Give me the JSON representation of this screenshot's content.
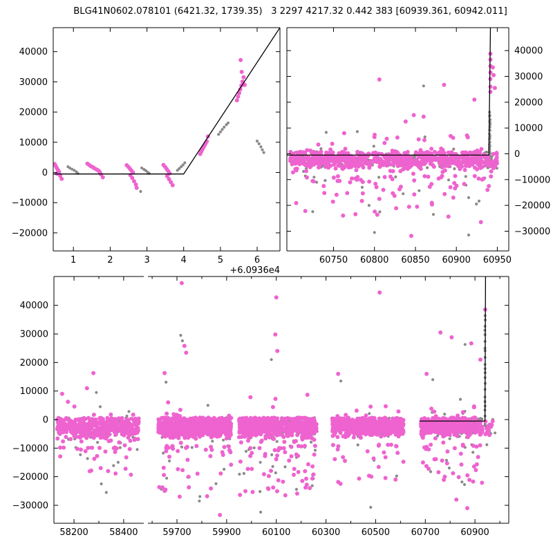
{
  "title": "BLG41N0602.078101 (6421.32, 1739.35)   3 2297 4217.32 0.442 383 [60939.361, 60942.011]",
  "colors": {
    "magenta": "#ee63cf",
    "gray": "#8a8a8a",
    "model_line": "#000000",
    "background": "#ffffff",
    "axis": "#000000"
  },
  "marker": {
    "magenta_radius": 3.0,
    "gray_radius": 2.1
  },
  "chart_data": [
    {
      "id": "event-zoom",
      "type": "scatter",
      "ylim": [
        -25970,
        47940
      ],
      "yticks": [
        -20000,
        -10000,
        0,
        10000,
        20000,
        30000,
        40000
      ],
      "ytick_side": "left",
      "x_offset_label": "+6.0936e4",
      "panels": [
        {
          "xlim": [
            60936.45,
            60942.62
          ],
          "xticks": [
            60937,
            60938,
            60939,
            60940,
            60941,
            60942
          ],
          "xtick_labels": [
            "1",
            "2",
            "3",
            "4",
            "5",
            "6"
          ],
          "xminor": []
        }
      ],
      "model_line": [
        [
          60936.45,
          -500
        ],
        [
          60940.0,
          -500
        ],
        [
          60942.62,
          47940
        ]
      ],
      "points_m": [
        [
          60936.49,
          2800
        ],
        [
          60936.52,
          2100
        ],
        [
          60936.55,
          1400
        ],
        [
          60936.58,
          800
        ],
        [
          60936.61,
          200
        ],
        [
          60936.55,
          -400
        ],
        [
          60936.64,
          -1100
        ],
        [
          60936.68,
          -2100
        ],
        [
          60937.38,
          2900
        ],
        [
          60937.43,
          2500
        ],
        [
          60937.47,
          2100
        ],
        [
          60937.52,
          1800
        ],
        [
          60937.56,
          1500
        ],
        [
          60937.61,
          1100
        ],
        [
          60937.66,
          800
        ],
        [
          60937.7,
          400
        ],
        [
          60937.72,
          -100
        ],
        [
          60937.75,
          -600
        ],
        [
          60937.8,
          -1600
        ],
        [
          60938.45,
          2400
        ],
        [
          60938.5,
          1800
        ],
        [
          60938.54,
          1200
        ],
        [
          60938.58,
          600
        ],
        [
          60938.62,
          0
        ],
        [
          60938.55,
          -900
        ],
        [
          60938.6,
          -1800
        ],
        [
          60938.65,
          -2900
        ],
        [
          60938.7,
          -4000
        ],
        [
          60938.72,
          -5100
        ],
        [
          60939.45,
          2500
        ],
        [
          60939.5,
          1800
        ],
        [
          60939.54,
          1100
        ],
        [
          60939.58,
          400
        ],
        [
          60939.62,
          -300
        ],
        [
          60939.55,
          -1200
        ],
        [
          60939.6,
          -2200
        ],
        [
          60939.65,
          -3200
        ],
        [
          60939.7,
          -4200
        ],
        [
          60940.45,
          6100
        ],
        [
          60940.48,
          6900
        ],
        [
          60940.51,
          7600
        ],
        [
          60940.54,
          8300
        ],
        [
          60940.57,
          9000
        ],
        [
          60940.6,
          9700
        ],
        [
          60940.63,
          10300
        ],
        [
          60940.66,
          11900
        ],
        [
          60941.45,
          23900
        ],
        [
          60941.48,
          25100
        ],
        [
          60941.51,
          26300
        ],
        [
          60941.54,
          27500
        ],
        [
          60941.57,
          28800
        ],
        [
          60941.6,
          30100
        ],
        [
          60941.63,
          31500
        ],
        [
          60941.58,
          33300
        ],
        [
          60941.55,
          37200
        ],
        [
          60941.66,
          29000
        ]
      ],
      "points_g": [
        [
          60936.85,
          1900
        ],
        [
          60936.9,
          1500
        ],
        [
          60936.96,
          1100
        ],
        [
          60937.02,
          700
        ],
        [
          60937.08,
          200
        ],
        [
          60937.12,
          -300
        ],
        [
          60938.83,
          -6300
        ],
        [
          60938.86,
          1500
        ],
        [
          60938.92,
          1000
        ],
        [
          60938.97,
          600
        ],
        [
          60939.02,
          100
        ],
        [
          60939.06,
          -300
        ],
        [
          60939.83,
          700
        ],
        [
          60939.88,
          1300
        ],
        [
          60939.93,
          1900
        ],
        [
          60939.98,
          2500
        ],
        [
          60940.03,
          3200
        ],
        [
          60940.95,
          12600
        ],
        [
          60941.0,
          13400
        ],
        [
          60941.05,
          14200
        ],
        [
          60941.1,
          15000
        ],
        [
          60941.16,
          15800
        ],
        [
          60941.21,
          16400
        ],
        [
          60942.0,
          10400
        ],
        [
          60942.05,
          9500
        ],
        [
          60942.1,
          8500
        ],
        [
          60942.14,
          7500
        ],
        [
          60942.18,
          6600
        ]
      ],
      "generators": []
    },
    {
      "id": "season-zoom",
      "type": "scatter",
      "ylim": [
        -37650,
        48900
      ],
      "yticks": [
        -30000,
        -20000,
        -10000,
        0,
        10000,
        20000,
        30000,
        40000
      ],
      "ytick_side": "right",
      "x_offset_label": "",
      "panels": [
        {
          "xlim": [
            60693,
            60964
          ],
          "xticks": [
            60750,
            60800,
            60850,
            60900,
            60950
          ],
          "xtick_labels": [
            "60750",
            "60800",
            "60850",
            "60900",
            "60950"
          ],
          "xminor": []
        }
      ],
      "model_line": [
        [
          60693,
          -500
        ],
        [
          60939.7,
          -500
        ],
        [
          60941.6,
          48900
        ]
      ],
      "points_m": [
        [
          60806,
          28800
        ],
        [
          60885,
          26700
        ],
        [
          60922,
          21000
        ],
        [
          60848,
          15000
        ],
        [
          60860,
          14400
        ],
        [
          60838,
          12500
        ],
        [
          60763,
          8000
        ],
        [
          60800,
          6500
        ],
        [
          60854,
          5600
        ],
        [
          60861,
          5300
        ],
        [
          60893,
          6900
        ],
        [
          60896,
          6200
        ],
        [
          60815,
          5800
        ],
        [
          60828,
          6300
        ],
        [
          60913,
          7100
        ],
        [
          60914,
          6400
        ],
        [
          60941.55,
          38800
        ],
        [
          60941.6,
          36500
        ],
        [
          60941.65,
          34000
        ],
        [
          60941.6,
          31500
        ],
        [
          60941.55,
          29000
        ],
        [
          60941.7,
          26000
        ],
        [
          60941.6,
          24000
        ],
        [
          60944.5,
          33500
        ],
        [
          60945.5,
          30500
        ],
        [
          60947,
          25500
        ],
        [
          60845,
          -31800
        ],
        [
          60930,
          -26500
        ],
        [
          60852,
          -20500
        ],
        [
          60870,
          -19000
        ],
        [
          60806,
          -17500
        ],
        [
          60938,
          -14000
        ],
        [
          60738,
          -12500
        ],
        [
          60755,
          -10500
        ]
      ],
      "points_g": [
        [
          60860,
          26300
        ],
        [
          60779,
          8600
        ],
        [
          60741,
          8300
        ],
        [
          60800,
          -30500
        ],
        [
          60915,
          -31500
        ],
        [
          60872,
          -23500
        ],
        [
          60915,
          -17000
        ],
        [
          60835,
          -15500
        ],
        [
          60785,
          -13000
        ]
      ],
      "generators": [
        {
          "kind": "band",
          "x0": 60697,
          "x1": 60940,
          "nm": 760,
          "ng": 235,
          "seed": 21,
          "mean": -2300,
          "sd": 1750,
          "hi": 800,
          "lo": -8600,
          "tail_p": 0.08,
          "tail_max": -24500,
          "up_p": 0.02,
          "up_lo": 1200,
          "up_hi": 8200
        },
        {
          "kind": "band",
          "x0": 60941,
          "x1": 60950,
          "nm": 22,
          "ng": 7,
          "seed": 22,
          "mean": -2600,
          "sd": 1900,
          "hi": 500,
          "lo": -8600,
          "tail_p": 0.1,
          "tail_max": -10000,
          "up_p": 0,
          "up_lo": 0,
          "up_hi": 0
        },
        {
          "kind": "column",
          "x": 60940.9,
          "xs": 0.4,
          "y0": -4500,
          "y1": 16500,
          "n": 26,
          "color": "g",
          "seed": 11
        }
      ]
    },
    {
      "id": "full-lightcurve",
      "type": "scatter",
      "ylim": [
        -36300,
        50100
      ],
      "yticks": [
        -30000,
        -20000,
        -10000,
        0,
        10000,
        20000,
        30000,
        40000
      ],
      "ytick_side": "left",
      "x_offset_label": "",
      "panels": [
        {
          "xlim": [
            58119,
            58481
          ],
          "xticks": [
            58200,
            58400
          ],
          "xtick_labels": [
            "58200",
            "58400"
          ],
          "xminor": [
            58300
          ]
        },
        {
          "xlim": [
            59583,
            61036
          ],
          "xticks": [
            59700,
            59900,
            60100,
            60300,
            60500,
            60700,
            60900
          ],
          "xtick_labels": [
            "59700",
            "59900",
            "60100",
            "60300",
            "60500",
            "60700",
            "60900"
          ],
          "xminor": [
            59600,
            59800,
            60000,
            60200,
            60400,
            60600,
            60800,
            61000
          ]
        }
      ],
      "model_line": [
        [
          60676,
          -500
        ],
        [
          60940.2,
          -500
        ],
        [
          60942.6,
          50100
        ]
      ],
      "points_m": [
        [
          59719,
          47800
        ],
        [
          60100,
          42800
        ],
        [
          60516,
          44500
        ],
        [
          59730,
          25800
        ],
        [
          59737,
          23400
        ],
        [
          60096,
          29800
        ],
        [
          60104,
          24000
        ],
        [
          59650,
          16300
        ],
        [
          60349,
          16000
        ],
        [
          58278,
          16300
        ],
        [
          58252,
          11000
        ],
        [
          58152,
          9000
        ],
        [
          60705,
          16000
        ],
        [
          60761,
          30500
        ],
        [
          60806,
          28800
        ],
        [
          60885,
          26700
        ],
        [
          60922,
          21000
        ],
        [
          60941,
          38500
        ],
        [
          59873,
          -33400
        ],
        [
          60869,
          -31000
        ],
        [
          60825,
          -28000
        ],
        [
          60184,
          -25900
        ],
        [
          60580,
          -21000
        ]
      ],
      "points_g": [
        [
          59715,
          29500
        ],
        [
          59722,
          27600
        ],
        [
          60080,
          21000
        ],
        [
          60360,
          13500
        ],
        [
          59656,
          13100
        ],
        [
          58290,
          9500
        ],
        [
          60730,
          14000
        ],
        [
          60860,
          26300
        ],
        [
          60037,
          -32400
        ],
        [
          60480,
          -30700
        ],
        [
          58330,
          -25500
        ],
        [
          58310,
          -22500
        ],
        [
          59790,
          -28500
        ]
      ],
      "generators": [
        {
          "kind": "band",
          "x0": 58132,
          "x1": 58462,
          "nm": 420,
          "ng": 125,
          "seed": 31,
          "mean": -3000,
          "sd": 2100,
          "hi": 600,
          "lo": -9800,
          "tail_p": 0.07,
          "tail_max": -20500,
          "up_p": 0.012,
          "up_lo": 1200,
          "up_hi": 8000
        },
        {
          "kind": "band",
          "x0": 59625,
          "x1": 59918,
          "nm": 620,
          "ng": 175,
          "seed": 32,
          "mean": -2600,
          "sd": 1900,
          "hi": 700,
          "lo": -9200,
          "tail_p": 0.075,
          "tail_max": -29000,
          "up_p": 0.015,
          "up_lo": 1200,
          "up_hi": 9500
        },
        {
          "kind": "band",
          "x0": 59950,
          "x1": 60262,
          "nm": 640,
          "ng": 185,
          "seed": 33,
          "mean": -2600,
          "sd": 1900,
          "hi": 700,
          "lo": -9200,
          "tail_p": 0.075,
          "tail_max": -27000,
          "up_p": 0.015,
          "up_lo": 1200,
          "up_hi": 9500
        },
        {
          "kind": "band",
          "x0": 60325,
          "x1": 60612,
          "nm": 470,
          "ng": 135,
          "seed": 34,
          "mean": -2500,
          "sd": 1800,
          "hi": 700,
          "lo": -8800,
          "tail_p": 0.06,
          "tail_max": -23000,
          "up_p": 0.012,
          "up_lo": 1200,
          "up_hi": 8500
        },
        {
          "kind": "band",
          "x0": 60682,
          "x1": 60930,
          "nm": 440,
          "ng": 135,
          "seed": 35,
          "mean": -2400,
          "sd": 1800,
          "hi": 700,
          "lo": -8800,
          "tail_p": 0.07,
          "tail_max": -24000,
          "up_p": 0.015,
          "up_lo": 1200,
          "up_hi": 9000
        },
        {
          "kind": "band",
          "x0": 60941,
          "x1": 60985,
          "nm": 18,
          "ng": 6,
          "seed": 36,
          "mean": -2600,
          "sd": 1900,
          "hi": 400,
          "lo": -8800,
          "tail_p": 0.1,
          "tail_max": -12000,
          "up_p": 0,
          "up_lo": 0,
          "up_hi": 0
        },
        {
          "kind": "column",
          "x": 60940.5,
          "xs": 0.8,
          "y0": -3500,
          "y1": 38200,
          "n": 22,
          "color": "g",
          "seed": 12
        }
      ]
    }
  ]
}
